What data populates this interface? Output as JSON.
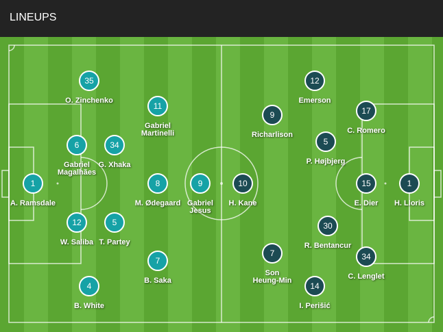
{
  "header": {
    "title": "LINEUPS"
  },
  "colors": {
    "home": "#16a2a6",
    "away": "#1c4b53",
    "pitch_dark": "#5ba632",
    "pitch_light": "#6ab541"
  },
  "home": [
    {
      "number": "1",
      "name": "A. Ramsdale"
    },
    {
      "number": "35",
      "name": "O. Zinchenko"
    },
    {
      "number": "11",
      "name": "Gabriel Martinelli"
    },
    {
      "number": "6",
      "name": "Gabriel Magalhães"
    },
    {
      "number": "34",
      "name": "G. Xhaka"
    },
    {
      "number": "8",
      "name": "M. Ødegaard"
    },
    {
      "number": "9",
      "name": "Gabriel Jesus"
    },
    {
      "number": "12",
      "name": "W. Saliba"
    },
    {
      "number": "5",
      "name": "T. Partey"
    },
    {
      "number": "7",
      "name": "B. Saka"
    },
    {
      "number": "4",
      "name": "B. White"
    }
  ],
  "away": [
    {
      "number": "10",
      "name": "H. Kane"
    },
    {
      "number": "9",
      "name": "Richarlison"
    },
    {
      "number": "12",
      "name": "Emerson"
    },
    {
      "number": "17",
      "name": "C. Romero"
    },
    {
      "number": "5",
      "name": "P. Højbjerg"
    },
    {
      "number": "15",
      "name": "E. Dier"
    },
    {
      "number": "1",
      "name": "H. Lloris"
    },
    {
      "number": "30",
      "name": "R. Bentancur"
    },
    {
      "number": "7",
      "name": "Son Heung-Min"
    },
    {
      "number": "34",
      "name": "C. Lenglet"
    },
    {
      "number": "14",
      "name": "I. Perišić"
    }
  ]
}
